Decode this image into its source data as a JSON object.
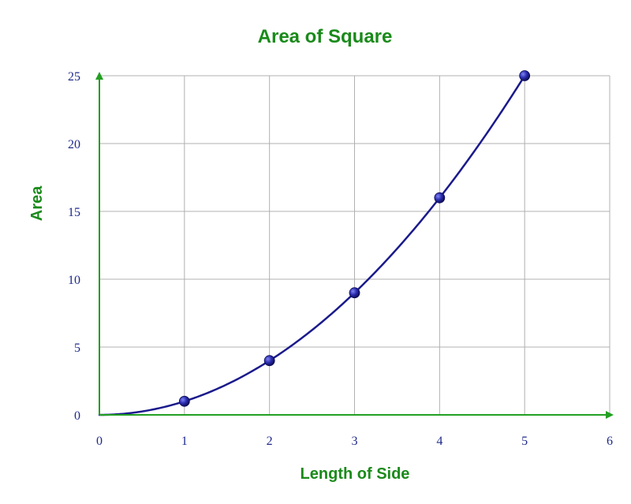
{
  "chart_data": {
    "type": "line",
    "title": "Area of Square",
    "xlabel": "Length of Side",
    "ylabel": "Area",
    "xlim": [
      0,
      6
    ],
    "ylim": [
      0,
      25
    ],
    "x_ticks": [
      0,
      1,
      2,
      3,
      4,
      5,
      6
    ],
    "y_ticks": [
      0,
      5,
      10,
      15,
      20,
      25
    ],
    "grid": true,
    "series": [
      {
        "x": [
          0,
          1,
          2,
          3,
          4,
          5
        ],
        "y": [
          0,
          1,
          4,
          9,
          16,
          25
        ],
        "markers": [
          1,
          2,
          3,
          4,
          5
        ]
      }
    ]
  },
  "colors": {
    "title": "#1a8a1a",
    "axis": "#22a022",
    "tick_label": "#1f2a8a",
    "line": "#1a1a8c",
    "marker": "#2a2ab0",
    "grid": "#b0b0b0"
  }
}
